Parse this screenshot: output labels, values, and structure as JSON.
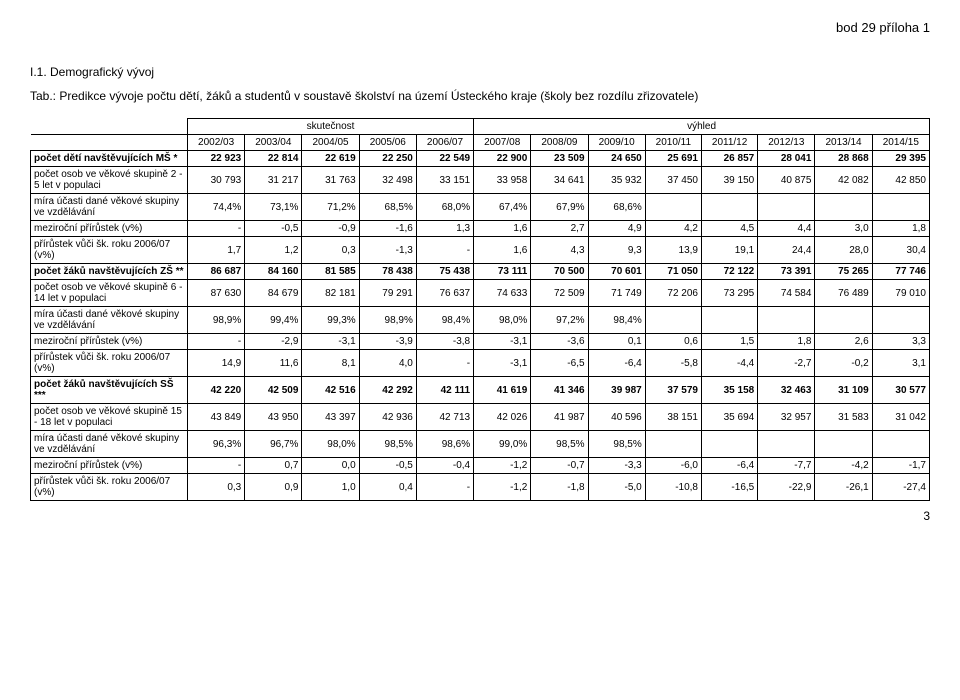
{
  "header_right": "bod 29 příloha 1",
  "section_num": "I.1. Demografický vývoj",
  "tab_title": "Tab.: Predikce vývoje počtu dětí, žáků a studentů v soustavě školství na území Ústeckého kraje (školy bez rozdílu zřizovatele)",
  "group_headers": {
    "left": "skutečnost",
    "right": "výhled"
  },
  "years": [
    "2002/03",
    "2003/04",
    "2004/05",
    "2005/06",
    "2006/07",
    "2007/08",
    "2008/09",
    "2009/10",
    "2010/11",
    "2011/12",
    "2012/13",
    "2013/14",
    "2014/15"
  ],
  "rows": [
    {
      "label": "počet dětí navštěvujících MŠ *",
      "bold": true,
      "cells": [
        "22 923",
        "22 814",
        "22 619",
        "22 250",
        "22 549",
        "22 900",
        "23 509",
        "24 650",
        "25 691",
        "26 857",
        "28 041",
        "28 868",
        "29 395"
      ]
    },
    {
      "label": "počet osob ve věkové skupině 2 - 5 let v populaci",
      "bold": false,
      "cells": [
        "30 793",
        "31 217",
        "31 763",
        "32 498",
        "33 151",
        "33 958",
        "34 641",
        "35 932",
        "37 450",
        "39 150",
        "40 875",
        "42 082",
        "42 850"
      ]
    },
    {
      "label": "míra účasti dané věkové skupiny ve vzdělávání",
      "bold": false,
      "cells": [
        "74,4%",
        "73,1%",
        "71,2%",
        "68,5%",
        "68,0%",
        "67,4%",
        "67,9%",
        "68,6%",
        "",
        "",
        "",
        "",
        ""
      ]
    },
    {
      "label": "meziroční přírůstek (v%)",
      "bold": false,
      "cells": [
        "-",
        "-0,5",
        "-0,9",
        "-1,6",
        "1,3",
        "1,6",
        "2,7",
        "4,9",
        "4,2",
        "4,5",
        "4,4",
        "3,0",
        "1,8"
      ]
    },
    {
      "label": "přírůstek vůči šk. roku 2006/07 (v%)",
      "bold": false,
      "cells": [
        "1,7",
        "1,2",
        "0,3",
        "-1,3",
        "-",
        "1,6",
        "4,3",
        "9,3",
        "13,9",
        "19,1",
        "24,4",
        "28,0",
        "30,4"
      ]
    },
    {
      "label": "počet žáků navštěvujících ZŠ **",
      "bold": true,
      "cells": [
        "86 687",
        "84 160",
        "81 585",
        "78 438",
        "75 438",
        "73 111",
        "70 500",
        "70 601",
        "71 050",
        "72 122",
        "73 391",
        "75 265",
        "77 746"
      ]
    },
    {
      "label": "počet osob ve věkové skupině 6 - 14 let v populaci",
      "bold": false,
      "cells": [
        "87 630",
        "84 679",
        "82 181",
        "79 291",
        "76 637",
        "74 633",
        "72 509",
        "71 749",
        "72 206",
        "73 295",
        "74 584",
        "76 489",
        "79 010"
      ]
    },
    {
      "label": "míra účasti dané věkové skupiny ve vzdělávání",
      "bold": false,
      "cells": [
        "98,9%",
        "99,4%",
        "99,3%",
        "98,9%",
        "98,4%",
        "98,0%",
        "97,2%",
        "98,4%",
        "",
        "",
        "",
        "",
        ""
      ]
    },
    {
      "label": "meziroční přírůstek (v%)",
      "bold": false,
      "cells": [
        "-",
        "-2,9",
        "-3,1",
        "-3,9",
        "-3,8",
        "-3,1",
        "-3,6",
        "0,1",
        "0,6",
        "1,5",
        "1,8",
        "2,6",
        "3,3"
      ]
    },
    {
      "label": "přírůstek vůči šk. roku 2006/07 (v%)",
      "bold": false,
      "cells": [
        "14,9",
        "11,6",
        "8,1",
        "4,0",
        "-",
        "-3,1",
        "-6,5",
        "-6,4",
        "-5,8",
        "-4,4",
        "-2,7",
        "-0,2",
        "3,1"
      ]
    },
    {
      "label": "počet žáků navštěvujících SŠ ***",
      "bold": true,
      "cells": [
        "42 220",
        "42 509",
        "42 516",
        "42 292",
        "42 111",
        "41 619",
        "41 346",
        "39 987",
        "37 579",
        "35 158",
        "32 463",
        "31 109",
        "30 577"
      ]
    },
    {
      "label": "počet osob ve věkové skupině 15 - 18 let v populaci",
      "bold": false,
      "cells": [
        "43 849",
        "43 950",
        "43 397",
        "42 936",
        "42 713",
        "42 026",
        "41 987",
        "40 596",
        "38 151",
        "35 694",
        "32 957",
        "31 583",
        "31 042"
      ]
    },
    {
      "label": "míra účasti dané věkové skupiny ve vzdělávání",
      "bold": false,
      "cells": [
        "96,3%",
        "96,7%",
        "98,0%",
        "98,5%",
        "98,6%",
        "99,0%",
        "98,5%",
        "98,5%",
        "",
        "",
        "",
        "",
        ""
      ]
    },
    {
      "label": "meziroční přírůstek (v%)",
      "bold": false,
      "cells": [
        "-",
        "0,7",
        "0,0",
        "-0,5",
        "-0,4",
        "-1,2",
        "-0,7",
        "-3,3",
        "-6,0",
        "-6,4",
        "-7,7",
        "-4,2",
        "-1,7"
      ]
    },
    {
      "label": "přírůstek vůči šk. roku 2006/07 (v%)",
      "bold": false,
      "cells": [
        "0,3",
        "0,9",
        "1,0",
        "0,4",
        "-",
        "-1,2",
        "-1,8",
        "-5,0",
        "-10,8",
        "-16,5",
        "-22,9",
        "-26,1",
        "-27,4"
      ]
    }
  ],
  "page_num": "3"
}
